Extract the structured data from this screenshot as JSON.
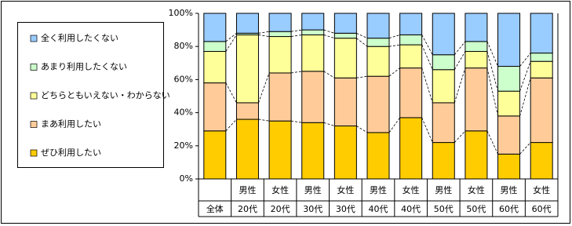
{
  "chart_data": {
    "type": "stacked-bar-100",
    "categories": [
      "全体",
      "20代",
      "20代",
      "30代",
      "30代",
      "40代",
      "40代",
      "50代",
      "50代",
      "60代",
      "60代"
    ],
    "category_groups": [
      null,
      "男性",
      "女性",
      "男性",
      "女性",
      "男性",
      "女性",
      "男性",
      "女性",
      "男性",
      "女性"
    ],
    "series": [
      {
        "name": "ぜひ利用したい",
        "color": "#ffcc00",
        "values": [
          29,
          36,
          35,
          34,
          32,
          28,
          37,
          22,
          29,
          15,
          22
        ]
      },
      {
        "name": "まあ利用したい",
        "color": "#ffcc99",
        "values": [
          29,
          10,
          29,
          31,
          29,
          34,
          30,
          24,
          38,
          23,
          39
        ]
      },
      {
        "name": "どちらともいえない・わからない",
        "color": "#ffff99",
        "values": [
          19,
          41,
          22,
          22,
          24,
          18,
          14,
          20,
          10,
          15,
          10
        ]
      },
      {
        "name": "あまり利用したくない",
        "color": "#ccffcc",
        "values": [
          6,
          1,
          3,
          3,
          3,
          5,
          6,
          9,
          6,
          15,
          5
        ]
      },
      {
        "name": "全く利用したくない",
        "color": "#99ccff",
        "values": [
          17,
          12,
          11,
          10,
          12,
          15,
          13,
          25,
          17,
          32,
          24
        ]
      }
    ],
    "ylim": [
      0,
      100
    ],
    "yticks": [
      {
        "value": 0,
        "label": "0%"
      },
      {
        "value": 20,
        "label": "20%"
      },
      {
        "value": 40,
        "label": "40%"
      },
      {
        "value": 60,
        "label": "60%"
      },
      {
        "value": 80,
        "label": "80%"
      },
      {
        "value": 100,
        "label": "100%"
      }
    ],
    "legend": "left"
  }
}
